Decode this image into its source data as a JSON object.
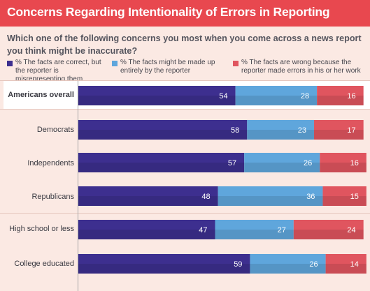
{
  "title": "Concerns Regarding Intentionality of Errors in Reporting",
  "question": "Which one of the following concerns you most when you come across a news report you think might be inaccurate?",
  "legend": [
    {
      "text": "% The facts are correct, but the reporter is misrepresenting them",
      "color": "#3d2f8f"
    },
    {
      "text": "% The facts might be made up entirely by the reporter",
      "color": "#5fa6dc"
    },
    {
      "text": "% The facts are wrong because the reporter made errors in his or her work",
      "color": "#e0555f"
    }
  ],
  "chart_data": {
    "type": "bar",
    "orientation": "horizontal",
    "stacked": true,
    "title": "Concerns Regarding Intentionality of Errors in Reporting",
    "categories": [
      "Americans overall",
      "Democrats",
      "Independents",
      "Republicans",
      "High school or less",
      "College educated"
    ],
    "series": [
      {
        "name": "% The facts are correct, but the reporter is misrepresenting them",
        "color": "#3d2f8f",
        "values": [
          54,
          58,
          57,
          48,
          47,
          59
        ]
      },
      {
        "name": "% The facts might be made up entirely by the reporter",
        "color": "#5fa6dc",
        "values": [
          28,
          23,
          26,
          36,
          27,
          26
        ]
      },
      {
        "name": "% The facts are wrong because the reporter made errors in his or her work",
        "color": "#e0555f",
        "values": [
          16,
          17,
          16,
          15,
          24,
          14
        ]
      }
    ],
    "xlim": [
      0,
      100
    ],
    "grid": false,
    "legend_position": "top"
  }
}
